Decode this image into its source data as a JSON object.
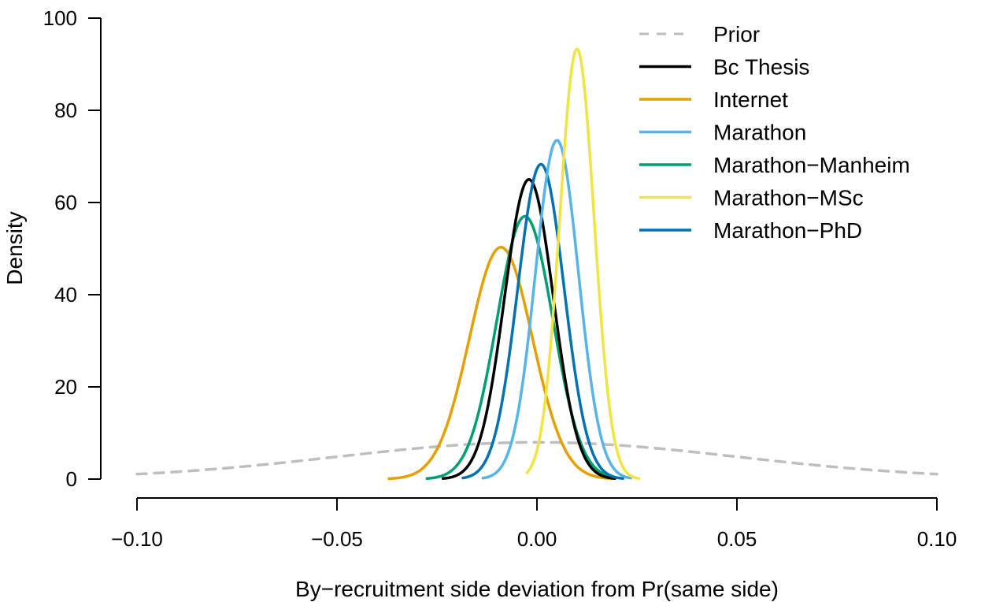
{
  "chart_data": {
    "type": "line",
    "title": "",
    "xlabel": "By−recruitment side deviation from Pr(same side)",
    "ylabel": "Density",
    "xlim": [
      -0.1,
      0.1
    ],
    "ylim": [
      0,
      100
    ],
    "x_ticks": [
      -0.1,
      -0.05,
      0.0,
      0.05,
      0.1
    ],
    "x_tick_labels": [
      "−0.10",
      "−0.05",
      "0.00",
      "0.05",
      "0.10"
    ],
    "y_ticks": [
      0,
      20,
      40,
      60,
      80,
      100
    ],
    "y_tick_labels": [
      "0",
      "20",
      "40",
      "60",
      "80",
      "100"
    ],
    "grid": false,
    "legend_position": "top-right",
    "series": [
      {
        "name": "Prior",
        "color": "#bebebe",
        "dashed": true,
        "kind": "normal",
        "mean": 0.0,
        "sd": 0.05,
        "xrange": [
          -0.1,
          0.1
        ],
        "peak": 7.98
      },
      {
        "name": "Bc Thesis",
        "color": "#000000",
        "dashed": false,
        "kind": "normal",
        "mean": -0.002,
        "sd": 0.0061,
        "xrange": [
          -0.0235,
          0.0195
        ],
        "peak": 65.0
      },
      {
        "name": "Internet",
        "color": "#e69f00",
        "dashed": false,
        "kind": "normal",
        "mean": -0.009,
        "sd": 0.0079,
        "xrange": [
          -0.037,
          0.019
        ],
        "peak": 50.3
      },
      {
        "name": "Marathon",
        "color": "#56b4e9",
        "dashed": false,
        "kind": "normal",
        "mean": 0.005,
        "sd": 0.0054,
        "xrange": [
          -0.0135,
          0.0235
        ],
        "peak": 73.5
      },
      {
        "name": "Marathon−Manheim",
        "color": "#009e73",
        "dashed": false,
        "kind": "normal",
        "mean": -0.003,
        "sd": 0.007,
        "xrange": [
          -0.0275,
          0.0195
        ],
        "peak": 57.0
      },
      {
        "name": "Marathon−MSc",
        "color": "#f0e442",
        "dashed": false,
        "kind": "normal",
        "mean": 0.01,
        "sd": 0.0043,
        "xrange": [
          -0.0025,
          0.0255
        ],
        "peak": 93.3
      },
      {
        "name": "Marathon−PhD",
        "color": "#0072b2",
        "dashed": false,
        "kind": "normal",
        "mean": 0.001,
        "sd": 0.0058,
        "xrange": [
          -0.0185,
          0.0215
        ],
        "peak": 68.3
      }
    ]
  }
}
